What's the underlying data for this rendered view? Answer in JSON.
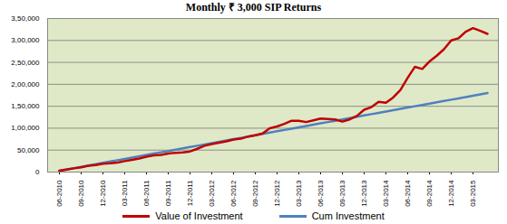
{
  "chart_data": {
    "type": "line",
    "title": "Monthly ₹ 3,000 SIP Returns",
    "categories": [
      "06-2010",
      null,
      null,
      "09-2010",
      null,
      null,
      "12-2010",
      null,
      null,
      "03-2011",
      null,
      null,
      "06-2011",
      null,
      null,
      "09-2011",
      null,
      null,
      "12-2011",
      null,
      null,
      "03-2012",
      null,
      null,
      "06-2012",
      null,
      null,
      "09-2012",
      null,
      null,
      "12-2012",
      null,
      null,
      "03-2013",
      null,
      null,
      "06-2013",
      null,
      null,
      "09-2013",
      null,
      null,
      "12-2013",
      null,
      null,
      "03-2014",
      null,
      null,
      "06-2014",
      null,
      null,
      "09-2014",
      null,
      null,
      "12-2014",
      null,
      null,
      "03-2015",
      null,
      null
    ],
    "series": [
      {
        "name": "Value of Investment",
        "color": "#c00000",
        "values": [
          3000,
          5500,
          8500,
          11000,
          14500,
          16000,
          19000,
          20000,
          21500,
          25000,
          28000,
          31000,
          35000,
          38000,
          39000,
          42000,
          44000,
          45000,
          47000,
          53000,
          60000,
          64000,
          67000,
          70000,
          74000,
          76000,
          81000,
          84000,
          88000,
          100000,
          104000,
          110000,
          117000,
          117000,
          114000,
          118000,
          122000,
          121000,
          120000,
          115000,
          120000,
          128000,
          142000,
          148000,
          160000,
          158000,
          170000,
          187000,
          215000,
          240000,
          235000,
          252000,
          265000,
          280000,
          300000,
          305000,
          320000,
          328000,
          322000,
          315000
        ]
      },
      {
        "name": "Cum Investment",
        "color": "#4f81bd",
        "values": [
          3000,
          6000,
          9000,
          12000,
          15000,
          18000,
          21000,
          24000,
          27000,
          30000,
          33000,
          36000,
          39000,
          42000,
          45000,
          48000,
          51000,
          54000,
          57000,
          60000,
          63000,
          66000,
          69000,
          72000,
          75000,
          78000,
          81000,
          84000,
          87000,
          90000,
          93000,
          96000,
          99000,
          102000,
          105000,
          108000,
          111000,
          114000,
          117000,
          120000,
          123000,
          126000,
          129000,
          132000,
          135000,
          138000,
          141000,
          144000,
          147000,
          150000,
          153000,
          156000,
          159000,
          162000,
          165000,
          168000,
          171000,
          174000,
          177000,
          180000
        ]
      }
    ],
    "ylim": [
      0,
      350000
    ],
    "yticks": [
      0,
      {
        "value": 50000,
        "label": "50,000"
      },
      {
        "value": 100000,
        "label": "1,00,000"
      },
      {
        "value": 150000,
        "label": "1,50,000"
      },
      {
        "value": 200000,
        "label": "2,00,000"
      },
      {
        "value": 250000,
        "label": "2,50,000"
      },
      {
        "value": 300000,
        "label": "3,00,000"
      },
      {
        "value": 350000,
        "label": "3,50,000"
      }
    ],
    "grid": true,
    "legend": "bottom"
  }
}
